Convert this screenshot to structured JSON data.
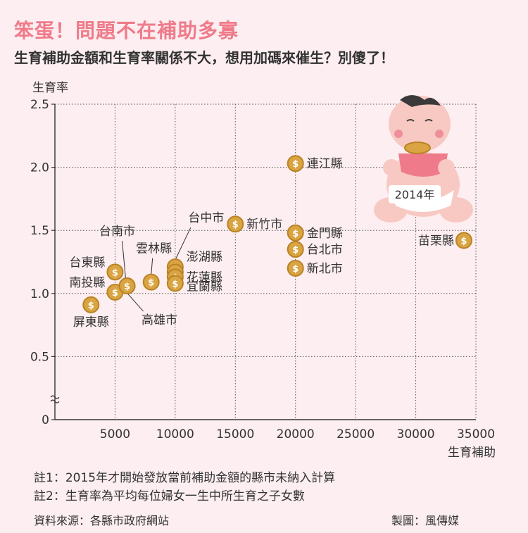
{
  "header": {
    "title": "笨蛋！問題不在補助多寡",
    "subtitle": "生育補助金額和生育率關係不大，想用加碼來催生？別傻了！"
  },
  "chart_data": {
    "type": "scatter",
    "xlabel": "生育補助",
    "ylabel": "生育率",
    "xlim": [
      0,
      35000
    ],
    "ylim": [
      0,
      2.5
    ],
    "x_ticks": [
      "5000",
      "10000",
      "15000",
      "20000",
      "25000",
      "30000",
      "35000"
    ],
    "y_ticks": [
      "0",
      "0.5",
      "1.0",
      "1.5",
      "2.0",
      "2.5"
    ],
    "grid": true,
    "marker": "coin-icon",
    "points": [
      {
        "label": "連江縣",
        "x": 20000,
        "y": 2.03
      },
      {
        "label": "新竹市",
        "x": 15000,
        "y": 1.55
      },
      {
        "label": "金門縣",
        "x": 20000,
        "y": 1.48
      },
      {
        "label": "台北市",
        "x": 20000,
        "y": 1.35
      },
      {
        "label": "新北市",
        "x": 20000,
        "y": 1.2
      },
      {
        "label": "苗栗縣",
        "x": 34000,
        "y": 1.42
      },
      {
        "label": "台中市",
        "x": 10000,
        "y": 1.21
      },
      {
        "label": "澎湖縣",
        "x": 10000,
        "y": 1.17
      },
      {
        "label": "花蓮縣",
        "x": 10000,
        "y": 1.13
      },
      {
        "label": "宜蘭縣",
        "x": 10000,
        "y": 1.08
      },
      {
        "label": "雲林縣",
        "x": 8000,
        "y": 1.09
      },
      {
        "label": "台南市",
        "x": 6000,
        "y": 1.06
      },
      {
        "label": "台東縣",
        "x": 5000,
        "y": 1.17
      },
      {
        "label": "南投縣",
        "x": 5000,
        "y": 1.01
      },
      {
        "label": "高雄市",
        "x": 6000,
        "y": 1.06
      },
      {
        "label": "屏東縣",
        "x": 3000,
        "y": 0.91
      }
    ]
  },
  "baby_label": "2014年",
  "notes": [
    "註1：2015年才開始發放當前補助金額的縣市未納入計算",
    "註2：生育率為平均每位婦女一生中所生育之子女數"
  ],
  "source": "資料來源：各縣市政府網站",
  "credit": "製圖：風傳媒",
  "colors": {
    "accent": "#ef7b8a",
    "coin": "#d9a441",
    "coin_edge": "#b98325",
    "background": "#fdeef1"
  }
}
